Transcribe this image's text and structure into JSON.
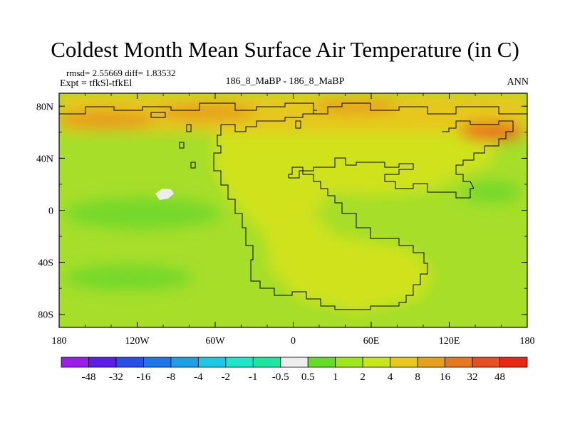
{
  "title": "Coldest Month Mean Surface Air Temperature (in C)",
  "stats_line": "rmsd= 2.55669 diff= 1.83532",
  "expt_line": "Expt = tfkSl-tfkEl",
  "center_label": "186_8_MaBP - 186_8_MaBP",
  "period_label": "ANN",
  "y_ticks": [
    "80N",
    "40N",
    "0",
    "40S",
    "80S"
  ],
  "x_ticks": [
    "180",
    "120W",
    "60W",
    "0",
    "60E",
    "120E",
    "180"
  ],
  "colorbar": {
    "labels": [
      "-48",
      "-32",
      "-16",
      "-8",
      "-4",
      "-2",
      "-1",
      "-0.5",
      "0.5",
      "1",
      "2",
      "4",
      "8",
      "16",
      "32",
      "48"
    ],
    "colors": [
      "#9a1ee6",
      "#5a1ee6",
      "#2850e6",
      "#1e78e6",
      "#1ea0e6",
      "#1ec8e6",
      "#1ee6c8",
      "#1ee6a0",
      "#ededed",
      "#64dc28",
      "#a0e61e",
      "#c8e61e",
      "#e6c81e",
      "#e6a01e",
      "#e6781e",
      "#e6501e",
      "#e62814"
    ]
  },
  "map_colors": {
    "base": "#a6de2a",
    "warm": "#cfe21e",
    "warmer": "#e6c81e",
    "hot": "#e6a01e",
    "hottest": "#e6781e",
    "cool": "#76d82a",
    "missing": "#ededed"
  }
}
